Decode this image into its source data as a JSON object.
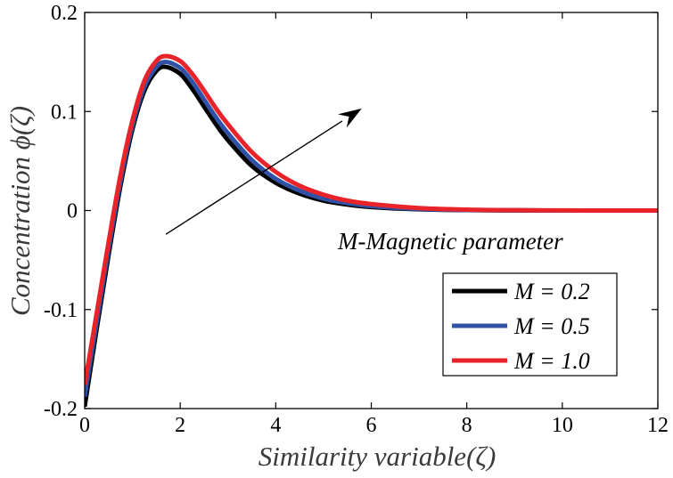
{
  "chart_data": {
    "type": "line",
    "xlabel": "Similarity variable(ζ)",
    "ylabel": "Concentration  ϕ(ζ)",
    "xlim": [
      0,
      12
    ],
    "ylim": [
      -0.2,
      0.2
    ],
    "xticks": [
      0,
      2,
      4,
      6,
      8,
      10,
      12
    ],
    "xtick_labels": [
      "0",
      "2",
      "4",
      "6",
      "8",
      "10",
      "12"
    ],
    "yticks": [
      -0.2,
      -0.1,
      0,
      0.1,
      0.2
    ],
    "ytick_labels": [
      "-0.2",
      "-0.1",
      "0",
      "0.1",
      "0.2"
    ],
    "grid": false,
    "legend_position": "bottom-right",
    "annotation": {
      "text": "M-Magnetic parameter",
      "arrow_from": [
        1.7,
        -0.024
      ],
      "arrow_to": [
        5.8,
        0.103
      ]
    },
    "series": [
      {
        "name": "M = 0.2",
        "color": "#000000",
        "x": [
          0,
          0.25,
          0.5,
          0.75,
          1.0,
          1.25,
          1.5,
          1.7,
          2.0,
          2.25,
          2.5,
          2.75,
          3.0,
          3.5,
          4.0,
          4.5,
          5.0,
          5.5,
          6.0,
          7.0,
          8.0,
          9.0,
          10.0,
          11.0,
          12.0
        ],
        "y": [
          -0.198,
          -0.12,
          -0.045,
          0.025,
          0.082,
          0.121,
          0.141,
          0.145,
          0.138,
          0.123,
          0.105,
          0.087,
          0.071,
          0.045,
          0.028,
          0.017,
          0.01,
          0.006,
          0.0035,
          0.0012,
          0.0004,
          0.0001,
          0.0,
          0.0,
          0.0
        ]
      },
      {
        "name": "M = 0.5",
        "color": "#2f52a6",
        "x": [
          0,
          0.25,
          0.5,
          0.75,
          1.0,
          1.25,
          1.5,
          1.7,
          2.0,
          2.25,
          2.5,
          2.75,
          3.0,
          3.5,
          4.0,
          4.5,
          5.0,
          5.5,
          6.0,
          7.0,
          8.0,
          9.0,
          10.0,
          11.0,
          12.0
        ],
        "y": [
          -0.188,
          -0.113,
          -0.039,
          0.03,
          0.086,
          0.125,
          0.145,
          0.15,
          0.144,
          0.13,
          0.112,
          0.094,
          0.078,
          0.051,
          0.032,
          0.02,
          0.012,
          0.0075,
          0.0045,
          0.0016,
          0.0005,
          0.0002,
          0.0,
          0.0,
          0.0
        ]
      },
      {
        "name": "M = 1.0",
        "color": "#e8232a",
        "x": [
          0,
          0.25,
          0.5,
          0.75,
          1.0,
          1.25,
          1.5,
          1.7,
          2.0,
          2.25,
          2.5,
          2.75,
          3.0,
          3.5,
          4.0,
          4.5,
          5.0,
          5.5,
          6.0,
          7.0,
          8.0,
          9.0,
          10.0,
          11.0,
          12.0
        ],
        "y": [
          -0.176,
          -0.104,
          -0.032,
          0.036,
          0.091,
          0.131,
          0.151,
          0.156,
          0.151,
          0.138,
          0.121,
          0.103,
          0.087,
          0.059,
          0.039,
          0.025,
          0.016,
          0.01,
          0.0065,
          0.0025,
          0.0009,
          0.0003,
          0.0001,
          0.0,
          0.0
        ]
      }
    ]
  }
}
